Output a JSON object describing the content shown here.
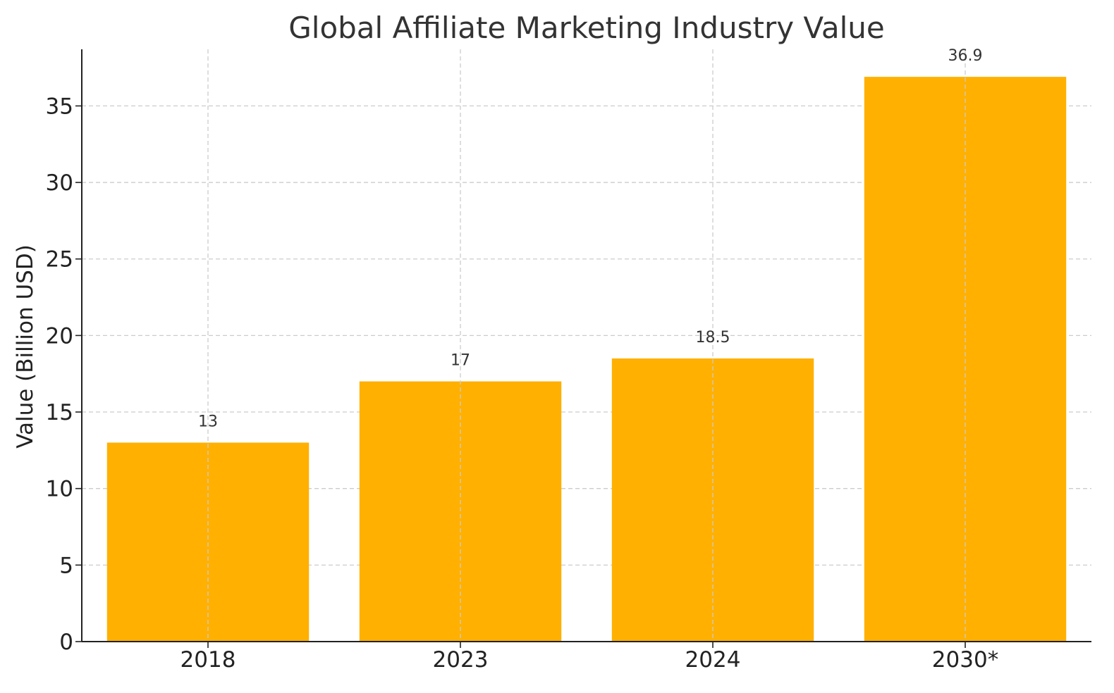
{
  "chart_data": {
    "type": "bar",
    "title": "Global Affiliate Marketing Industry Value",
    "xlabel": "",
    "ylabel": "Value (Billion USD)",
    "categories": [
      "2018",
      "2023",
      "2024",
      "2030*"
    ],
    "values": [
      13,
      17,
      18.5,
      36.9
    ],
    "data_labels": [
      "13",
      "17",
      "18.5",
      "36.9"
    ],
    "ylim": [
      0,
      38.7
    ],
    "yticks": [
      0,
      5,
      10,
      15,
      20,
      25,
      30,
      35
    ],
    "grid": true,
    "legend": "none",
    "colors": {
      "bar": "#FFB000",
      "axis": "#222222",
      "grid": "#cccccc",
      "text": "#333333"
    }
  }
}
